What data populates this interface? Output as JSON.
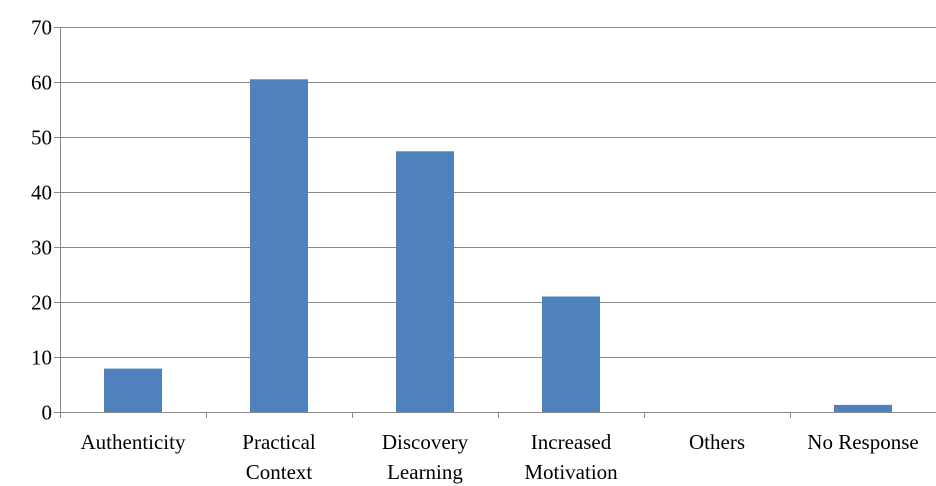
{
  "chart_data": {
    "type": "bar",
    "title": "",
    "xlabel": "",
    "ylabel": "",
    "categories": [
      [
        "Authenticity"
      ],
      [
        "Practical",
        "Context"
      ],
      [
        "Discovery",
        "Learning"
      ],
      [
        "Increased",
        "Motivation"
      ],
      [
        "Others"
      ],
      [
        "No Response"
      ]
    ],
    "series": [
      {
        "values": [
          7.9,
          60.5,
          47.4,
          21.0,
          0,
          1.3
        ]
      }
    ],
    "ylim": [
      0,
      70
    ],
    "yticks": [
      0,
      10,
      20,
      30,
      40,
      50,
      60,
      70
    ],
    "grid": true,
    "legend": "none",
    "colors": {
      "bar": "#4f81bd",
      "grid": "#878787"
    }
  }
}
